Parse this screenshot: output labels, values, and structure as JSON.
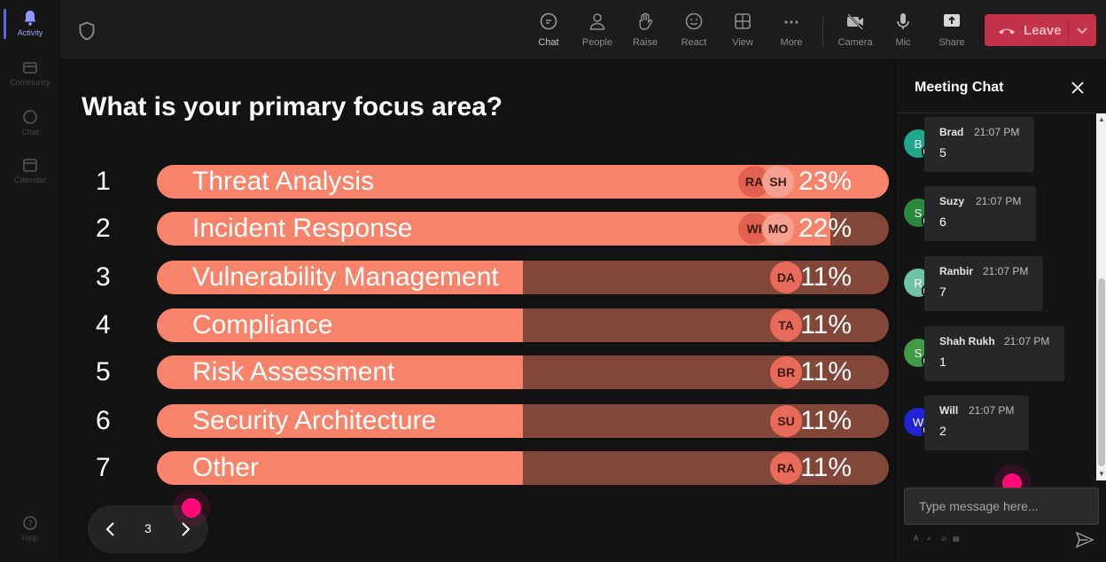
{
  "rail": {
    "items": [
      {
        "label": "Activity",
        "icon": "bell-icon"
      },
      {
        "label": "Community",
        "icon": "community-icon"
      },
      {
        "label": "Chat",
        "icon": "chat-icon"
      },
      {
        "label": "Calendar",
        "icon": "calendar-icon"
      },
      {
        "label": "Help",
        "icon": "help-icon"
      }
    ]
  },
  "toolbar": {
    "items": [
      {
        "label": "Chat",
        "icon": "chat-icon"
      },
      {
        "label": "People",
        "icon": "people-icon"
      },
      {
        "label": "Raise",
        "icon": "hand-icon"
      },
      {
        "label": "React",
        "icon": "smiley-icon"
      },
      {
        "label": "View",
        "icon": "grid-icon"
      },
      {
        "label": "More",
        "icon": "more-icon"
      },
      {
        "label": "Camera",
        "icon": "camera-off-icon"
      },
      {
        "label": "Mic",
        "icon": "mic-icon"
      },
      {
        "label": "Share",
        "icon": "share-icon"
      }
    ],
    "leave_label": "Leave",
    "leave_color": "#c4314b"
  },
  "poll": {
    "question": "What is your primary focus area?",
    "bar_fill_color": "#f7836a",
    "bar_track_color": "#83473a",
    "options": [
      {
        "num": "1",
        "label": "Threat Analysis",
        "percent_text": "23%",
        "fill_fraction": 1.0,
        "avatars": [
          "RA",
          "SH"
        ]
      },
      {
        "num": "2",
        "label": "Incident Response",
        "percent_text": "22%",
        "fill_fraction": 0.92,
        "avatars": [
          "WI",
          "MO"
        ]
      },
      {
        "num": "3",
        "label": "Vulnerability Management",
        "percent_text": "11%",
        "fill_fraction": 0.5,
        "avatars": [
          "DA"
        ]
      },
      {
        "num": "4",
        "label": "Compliance",
        "percent_text": "11%",
        "fill_fraction": 0.5,
        "avatars": [
          "TA"
        ]
      },
      {
        "num": "5",
        "label": "Risk Assessment",
        "percent_text": "11%",
        "fill_fraction": 0.5,
        "avatars": [
          "BR"
        ]
      },
      {
        "num": "6",
        "label": "Security Architecture",
        "percent_text": "11%",
        "fill_fraction": 0.5,
        "avatars": [
          "SU"
        ]
      },
      {
        "num": "7",
        "label": "Other",
        "percent_text": "11%",
        "fill_fraction": 0.5,
        "avatars": [
          "RA"
        ]
      }
    ],
    "page": "3"
  },
  "chat": {
    "title": "Meeting Chat",
    "messages": [
      {
        "initial": "B",
        "name": "Brad",
        "time": "21:07 PM",
        "text": "5",
        "avatar_color": "#1fa88c"
      },
      {
        "initial": "S",
        "name": "Suzy",
        "time": "21:07 PM",
        "text": "6",
        "avatar_color": "#2a8a3c"
      },
      {
        "initial": "R",
        "name": "Ranbir",
        "time": "21:07 PM",
        "text": "7",
        "avatar_color": "#6fc4a6"
      },
      {
        "initial": "S",
        "name": "Shah Rukh",
        "time": "21:07 PM",
        "text": "1",
        "avatar_color": "#3f9c44"
      },
      {
        "initial": "W",
        "name": "Will",
        "time": "21:07 PM",
        "text": "2",
        "avatar_color": "#2323d6"
      }
    ],
    "input_placeholder": "Type message here..."
  }
}
